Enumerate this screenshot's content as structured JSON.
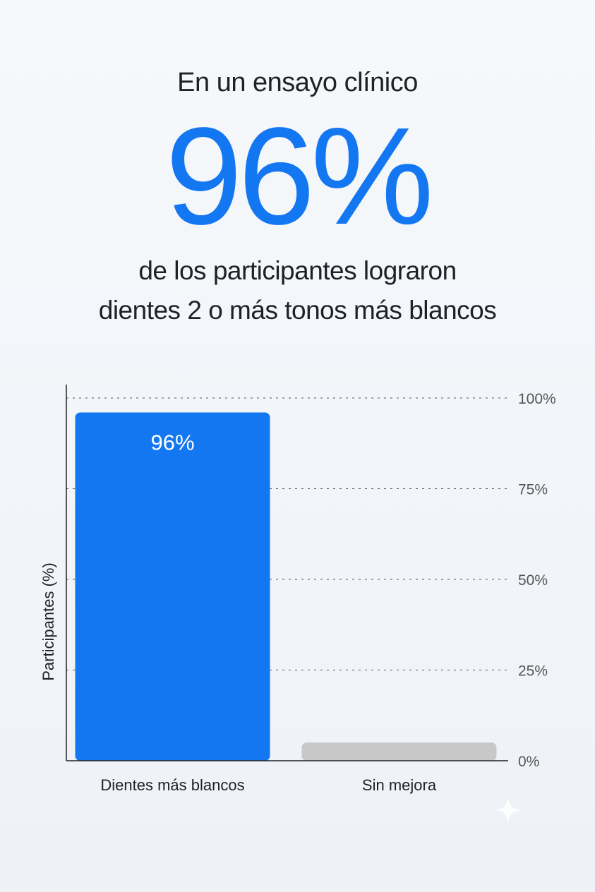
{
  "header": {
    "intro": "En un ensayo clínico",
    "stat": "96%",
    "subtitle_line1": "de los participantes lograron",
    "subtitle_line2": "dientes 2 o más tonos más blancos"
  },
  "chart_data": {
    "type": "bar",
    "categories": [
      "Dientes más blancos",
      "Sin mejora"
    ],
    "values": [
      96,
      5
    ],
    "data_labels": [
      "96%",
      ""
    ],
    "ylabel": "Participantes (%)",
    "xlabel": "",
    "ylim": [
      0,
      100
    ],
    "yticks": [
      0,
      25,
      50,
      75,
      100
    ],
    "ytick_labels": [
      "0%",
      "25%",
      "50%",
      "75%",
      "100%"
    ],
    "ytick_side": "right",
    "grid": "horizontal dotted",
    "bar_colors": [
      "#1477f2",
      "#c8c8c8"
    ]
  },
  "decor": {
    "watermark": "sparkle-icon"
  }
}
